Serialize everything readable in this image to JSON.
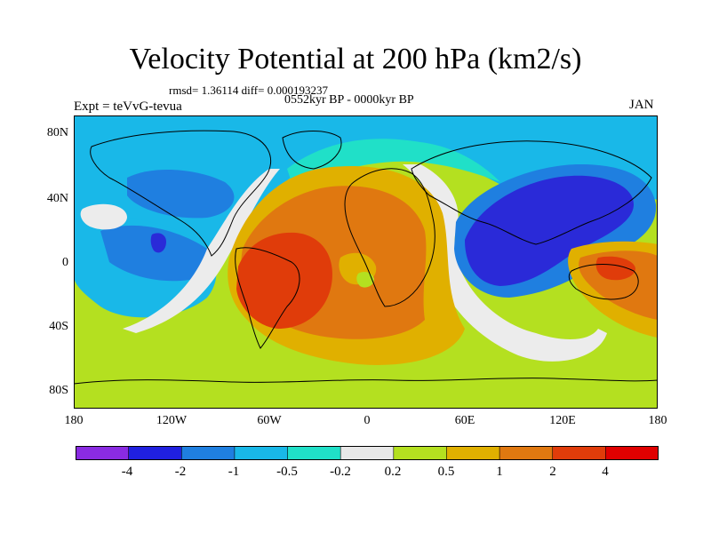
{
  "title": "Velocity Potential at 200 hPa (km2/s)",
  "stats": "rmsd= 1.36114 diff= 0.000193237",
  "period": "0552kyr BP - 0000kyr BP",
  "experiment": "Expt = teVvG-tevua",
  "month": "JAN",
  "axes": {
    "lat_ticks": [
      "80N",
      "40N",
      "0",
      "40S",
      "80S"
    ],
    "lon_ticks": [
      "180",
      "120W",
      "60W",
      "0",
      "60E",
      "120E",
      "180"
    ]
  },
  "colorbar": {
    "labels": [
      "-4",
      "-2",
      "-1",
      "-0.5",
      "-0.2",
      "0.2",
      "0.5",
      "1",
      "2",
      "4"
    ],
    "colors": [
      "#8a2be2",
      "#2020e0",
      "#1f7fe0",
      "#19b8e8",
      "#20e0c8",
      "#e8e8e8",
      "#b4e020",
      "#e0b000",
      "#e07810",
      "#e03c0a",
      "#e00000"
    ]
  },
  "colors": {
    "ocean_fill": "#b4e020",
    "strong_negative": "#2a2ad8",
    "negative": "#1f7fe0",
    "weak_negative": "#19b8e8",
    "near_zero_negative": "#20e0c8",
    "neutral": "#ececec",
    "positive": "#e0b000",
    "strong_positive": "#e07810",
    "max_positive": "#e03c0a"
  }
}
